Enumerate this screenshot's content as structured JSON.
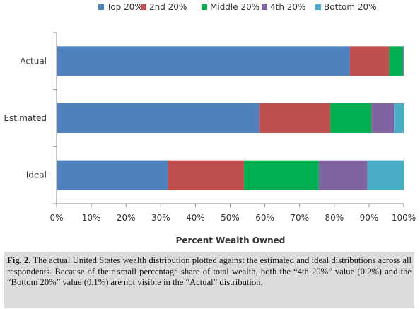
{
  "chart_data": {
    "type": "bar",
    "orientation": "horizontal",
    "stacked": true,
    "categories": [
      "Actual",
      "Estimated",
      "Ideal"
    ],
    "series": [
      {
        "name": "Top 20%",
        "color": "#4f81bd",
        "values": [
          84.5,
          58.5,
          32.0
        ]
      },
      {
        "name": "2nd 20%",
        "color": "#c0504d",
        "values": [
          11.3,
          20.4,
          22.0
        ]
      },
      {
        "name": "Middle 20%",
        "color": "#00b050",
        "values": [
          3.9,
          11.8,
          21.5
        ]
      },
      {
        "name": "4th 20%",
        "color": "#8064a2",
        "values": [
          0.2,
          6.5,
          14.0
        ]
      },
      {
        "name": "Bottom 20%",
        "color": "#4bacc6",
        "values": [
          0.1,
          2.8,
          10.5
        ]
      }
    ],
    "xlabel": "Percent Wealth Owned",
    "xlim": [
      0,
      100
    ],
    "xticks": [
      "0%",
      "10%",
      "20%",
      "30%",
      "40%",
      "50%",
      "60%",
      "70%",
      "80%",
      "90%",
      "100%"
    ],
    "legend_position": "top",
    "grid": false
  },
  "caption": {
    "label": "Fig. 2.",
    "text": "The actual United States wealth distribution plotted against the estimated and ideal distributions across all respondents. Because of their small percentage share of total wealth, both the “4th 20%” value (0.2%) and the “Bottom 20%” value (0.1%) are not visible in the “Actual” distribution."
  }
}
